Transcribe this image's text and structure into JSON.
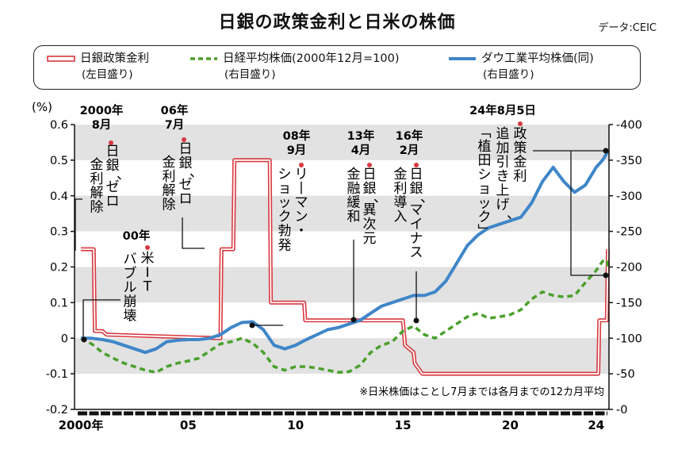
{
  "chart_data": {
    "type": "line",
    "title": "日銀の政策金利と日米の株価",
    "source": "データ:CEIC",
    "note": "※日米株価はことし7月までは各月までの12カ月平均",
    "left_axis": {
      "unit": "(%)",
      "ylim": [
        -0.2,
        0.6
      ],
      "ticks": [
        "0.6",
        "0.5",
        "0.4",
        "0.3",
        "0.2",
        "0.1",
        "0",
        "-0.1",
        "-0.2"
      ]
    },
    "right_axis": {
      "ylim": [
        0,
        400
      ],
      "ticks": [
        "400",
        "350",
        "300",
        "250",
        "200",
        "150",
        "100",
        "50",
        "0"
      ]
    },
    "x_ticks": [
      {
        "v": 2000,
        "label": "2000年"
      },
      {
        "v": 2005,
        "label": "05"
      },
      {
        "v": 2010,
        "label": "10"
      },
      {
        "v": 2015,
        "label": "15"
      },
      {
        "v": 2020,
        "label": "20"
      },
      {
        "v": 2024,
        "label": "24"
      }
    ],
    "xlim": [
      2000,
      2024.6
    ],
    "grid": "horizontal bands",
    "series": [
      {
        "name": "日銀政策金利",
        "sub": "(左目盛り)",
        "axis": "left",
        "color": "#d8383f",
        "style": "double",
        "points": [
          [
            2000.0,
            0.25
          ],
          [
            2000.6,
            0.25
          ],
          [
            2000.65,
            0.02
          ],
          [
            2001.0,
            0.02
          ],
          [
            2001.2,
            0.01
          ],
          [
            2006.5,
            0.0
          ],
          [
            2006.55,
            0.25
          ],
          [
            2007.1,
            0.25
          ],
          [
            2007.15,
            0.5
          ],
          [
            2008.8,
            0.5
          ],
          [
            2008.85,
            0.1
          ],
          [
            2010.4,
            0.1
          ],
          [
            2010.45,
            0.05
          ],
          [
            2015.0,
            0.05
          ],
          [
            2015.1,
            -0.02
          ],
          [
            2015.5,
            -0.04
          ],
          [
            2015.55,
            -0.07
          ],
          [
            2015.9,
            -0.1
          ],
          [
            2024.1,
            -0.1
          ],
          [
            2024.15,
            0.05
          ],
          [
            2024.5,
            0.05
          ],
          [
            2024.55,
            0.25
          ]
        ]
      },
      {
        "name": "日経平均株価(2000年12月=100)",
        "sub": "(右目盛り)",
        "axis": "right",
        "color": "#4aa02c",
        "style": "dashed",
        "points": [
          [
            2000.0,
            100
          ],
          [
            2000.5,
            92
          ],
          [
            2001.0,
            80
          ],
          [
            2001.5,
            72
          ],
          [
            2002.0,
            65
          ],
          [
            2002.5,
            60
          ],
          [
            2003.0,
            55
          ],
          [
            2003.5,
            52
          ],
          [
            2004.0,
            60
          ],
          [
            2004.5,
            65
          ],
          [
            2005.0,
            68
          ],
          [
            2005.5,
            72
          ],
          [
            2006.0,
            82
          ],
          [
            2006.5,
            92
          ],
          [
            2007.0,
            95
          ],
          [
            2007.5,
            100
          ],
          [
            2008.0,
            93
          ],
          [
            2008.5,
            80
          ],
          [
            2009.0,
            60
          ],
          [
            2009.5,
            55
          ],
          [
            2010.0,
            60
          ],
          [
            2010.5,
            60
          ],
          [
            2011.0,
            58
          ],
          [
            2011.5,
            55
          ],
          [
            2012.0,
            52
          ],
          [
            2012.5,
            53
          ],
          [
            2013.0,
            62
          ],
          [
            2013.5,
            80
          ],
          [
            2014.0,
            90
          ],
          [
            2014.5,
            95
          ],
          [
            2015.0,
            110
          ],
          [
            2015.5,
            117
          ],
          [
            2016.0,
            105
          ],
          [
            2016.5,
            100
          ],
          [
            2017.0,
            110
          ],
          [
            2017.5,
            120
          ],
          [
            2018.0,
            130
          ],
          [
            2018.5,
            135
          ],
          [
            2019.0,
            128
          ],
          [
            2019.5,
            130
          ],
          [
            2020.0,
            133
          ],
          [
            2020.5,
            140
          ],
          [
            2021.0,
            155
          ],
          [
            2021.5,
            165
          ],
          [
            2022.0,
            160
          ],
          [
            2022.5,
            158
          ],
          [
            2023.0,
            160
          ],
          [
            2023.5,
            178
          ],
          [
            2024.0,
            195
          ],
          [
            2024.3,
            208
          ],
          [
            2024.5,
            210
          ],
          [
            2024.55,
            200
          ]
        ]
      },
      {
        "name": "ダウ工業平均株価(同)",
        "sub": "(右目盛り)",
        "axis": "right",
        "color": "#3f86c8",
        "style": "solid",
        "points": [
          [
            2000.0,
            100
          ],
          [
            2000.5,
            100
          ],
          [
            2001.0,
            98
          ],
          [
            2001.5,
            95
          ],
          [
            2002.0,
            90
          ],
          [
            2002.5,
            85
          ],
          [
            2003.0,
            80
          ],
          [
            2003.5,
            85
          ],
          [
            2004.0,
            95
          ],
          [
            2004.5,
            97
          ],
          [
            2005.0,
            98
          ],
          [
            2005.5,
            98
          ],
          [
            2006.0,
            100
          ],
          [
            2006.5,
            105
          ],
          [
            2007.0,
            115
          ],
          [
            2007.5,
            122
          ],
          [
            2008.0,
            123
          ],
          [
            2008.5,
            112
          ],
          [
            2009.0,
            90
          ],
          [
            2009.5,
            85
          ],
          [
            2010.0,
            90
          ],
          [
            2010.5,
            98
          ],
          [
            2011.0,
            105
          ],
          [
            2011.5,
            112
          ],
          [
            2012.0,
            115
          ],
          [
            2012.5,
            120
          ],
          [
            2013.0,
            125
          ],
          [
            2013.5,
            135
          ],
          [
            2014.0,
            145
          ],
          [
            2014.5,
            150
          ],
          [
            2015.0,
            155
          ],
          [
            2015.5,
            160
          ],
          [
            2016.0,
            160
          ],
          [
            2016.5,
            165
          ],
          [
            2017.0,
            180
          ],
          [
            2017.5,
            205
          ],
          [
            2018.0,
            230
          ],
          [
            2018.5,
            245
          ],
          [
            2019.0,
            255
          ],
          [
            2019.5,
            260
          ],
          [
            2020.0,
            265
          ],
          [
            2020.5,
            270
          ],
          [
            2021.0,
            290
          ],
          [
            2021.5,
            320
          ],
          [
            2022.0,
            340
          ],
          [
            2022.5,
            320
          ],
          [
            2023.0,
            305
          ],
          [
            2023.5,
            315
          ],
          [
            2024.0,
            340
          ],
          [
            2024.3,
            350
          ],
          [
            2024.55,
            362
          ]
        ]
      }
    ],
    "annotations": [
      {
        "label": "2000年8月",
        "text": "日銀、ゼロ金利解除"
      },
      {
        "label": "00年",
        "text": "米ITバブル崩壊"
      },
      {
        "label": "06年7月",
        "text": "日銀、ゼロ金利解除"
      },
      {
        "label": "08年9月",
        "text": "リーマン・ショック勃発"
      },
      {
        "label": "13年4月",
        "text": "日銀、異次元金融緩和"
      },
      {
        "label": "16年2月",
        "text": "日銀、マイナス金利導入"
      },
      {
        "label": "24年8月5日",
        "text": "政策金利追加引き上げ、「植田ショック」"
      }
    ]
  }
}
